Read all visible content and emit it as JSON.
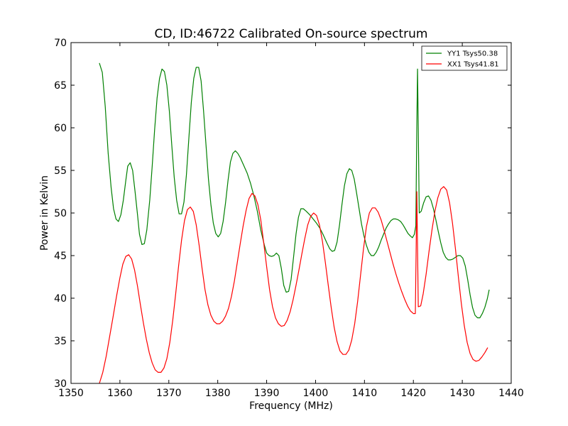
{
  "chart_data": {
    "type": "line",
    "title": "CD, ID:46722 Calibrated On-source spectrum",
    "xlabel": "Frequency (MHz)",
    "ylabel": "Power in Kelvin",
    "xlim": [
      1350,
      1440
    ],
    "ylim": [
      30,
      70
    ],
    "xticks": [
      1350,
      1360,
      1370,
      1380,
      1390,
      1400,
      1410,
      1420,
      1430,
      1440
    ],
    "yticks": [
      30,
      35,
      40,
      45,
      50,
      55,
      60,
      65,
      70
    ],
    "grid": false,
    "legend_position": "top-right",
    "series": [
      {
        "name": "YY1 Tsys50.38",
        "color": "#008000",
        "points": [
          [
            1355.8,
            67.6
          ],
          [
            1356.4,
            66.5
          ],
          [
            1357.0,
            62.5
          ],
          [
            1357.6,
            57.0
          ],
          [
            1358.2,
            53.0
          ],
          [
            1358.7,
            50.5
          ],
          [
            1359.2,
            49.3
          ],
          [
            1359.7,
            49.0
          ],
          [
            1360.2,
            49.8
          ],
          [
            1360.7,
            51.5
          ],
          [
            1361.2,
            53.8
          ],
          [
            1361.6,
            55.5
          ],
          [
            1362.1,
            55.9
          ],
          [
            1362.6,
            55.0
          ],
          [
            1363.1,
            52.5
          ],
          [
            1363.6,
            49.8
          ],
          [
            1364.0,
            47.5
          ],
          [
            1364.5,
            46.3
          ],
          [
            1365.0,
            46.4
          ],
          [
            1365.5,
            48.0
          ],
          [
            1366.1,
            51.5
          ],
          [
            1366.6,
            55.5
          ],
          [
            1367.1,
            59.8
          ],
          [
            1367.6,
            63.5
          ],
          [
            1368.1,
            65.8
          ],
          [
            1368.6,
            66.9
          ],
          [
            1369.1,
            66.6
          ],
          [
            1369.6,
            65.0
          ],
          [
            1370.1,
            62.0
          ],
          [
            1370.6,
            58.0
          ],
          [
            1371.1,
            54.2
          ],
          [
            1371.6,
            51.5
          ],
          [
            1372.1,
            49.9
          ],
          [
            1372.6,
            49.9
          ],
          [
            1373.1,
            51.3
          ],
          [
            1373.6,
            54.5
          ],
          [
            1374.1,
            58.8
          ],
          [
            1374.6,
            63.0
          ],
          [
            1375.1,
            65.8
          ],
          [
            1375.6,
            67.1
          ],
          [
            1376.1,
            67.1
          ],
          [
            1376.6,
            65.5
          ],
          [
            1377.1,
            62.0
          ],
          [
            1377.6,
            58.0
          ],
          [
            1378.1,
            54.0
          ],
          [
            1378.6,
            51.0
          ],
          [
            1379.1,
            48.8
          ],
          [
            1379.6,
            47.6
          ],
          [
            1380.1,
            47.2
          ],
          [
            1380.6,
            47.6
          ],
          [
            1381.1,
            49.0
          ],
          [
            1381.6,
            51.2
          ],
          [
            1382.1,
            53.8
          ],
          [
            1382.6,
            56.0
          ],
          [
            1383.1,
            57.0
          ],
          [
            1383.6,
            57.3
          ],
          [
            1384.1,
            57.0
          ],
          [
            1384.6,
            56.5
          ],
          [
            1385.3,
            55.6
          ],
          [
            1386.0,
            54.7
          ],
          [
            1386.7,
            53.5
          ],
          [
            1387.4,
            52.0
          ],
          [
            1388.1,
            50.2
          ],
          [
            1388.8,
            48.0
          ],
          [
            1389.5,
            46.3
          ],
          [
            1390.0,
            45.3
          ],
          [
            1390.5,
            45.0
          ],
          [
            1391.0,
            44.9
          ],
          [
            1391.5,
            45.0
          ],
          [
            1392.0,
            45.3
          ],
          [
            1392.5,
            45.0
          ],
          [
            1393.0,
            43.5
          ],
          [
            1393.5,
            41.5
          ],
          [
            1394.0,
            40.7
          ],
          [
            1394.5,
            40.8
          ],
          [
            1395.0,
            42.2
          ],
          [
            1395.5,
            44.8
          ],
          [
            1396.0,
            47.5
          ],
          [
            1396.5,
            49.5
          ],
          [
            1397.0,
            50.5
          ],
          [
            1397.5,
            50.5
          ],
          [
            1398.1,
            50.2
          ],
          [
            1398.8,
            49.8
          ],
          [
            1399.5,
            49.3
          ],
          [
            1400.2,
            48.8
          ],
          [
            1400.9,
            48.2
          ],
          [
            1401.6,
            47.4
          ],
          [
            1402.3,
            46.5
          ],
          [
            1402.9,
            45.8
          ],
          [
            1403.4,
            45.5
          ],
          [
            1403.9,
            45.6
          ],
          [
            1404.4,
            46.6
          ],
          [
            1404.9,
            48.6
          ],
          [
            1405.4,
            51.0
          ],
          [
            1405.9,
            53.2
          ],
          [
            1406.4,
            54.6
          ],
          [
            1406.9,
            55.2
          ],
          [
            1407.4,
            55.0
          ],
          [
            1407.9,
            54.0
          ],
          [
            1408.4,
            52.3
          ],
          [
            1408.9,
            50.5
          ],
          [
            1409.4,
            48.7
          ],
          [
            1409.9,
            47.3
          ],
          [
            1410.4,
            46.2
          ],
          [
            1410.9,
            45.4
          ],
          [
            1411.4,
            45.0
          ],
          [
            1411.9,
            45.0
          ],
          [
            1412.4,
            45.4
          ],
          [
            1412.9,
            46.0
          ],
          [
            1413.4,
            46.8
          ],
          [
            1413.9,
            47.5
          ],
          [
            1414.4,
            48.2
          ],
          [
            1414.9,
            48.7
          ],
          [
            1415.4,
            49.1
          ],
          [
            1415.9,
            49.3
          ],
          [
            1416.4,
            49.3
          ],
          [
            1416.9,
            49.2
          ],
          [
            1417.4,
            49.0
          ],
          [
            1417.9,
            48.6
          ],
          [
            1418.4,
            48.1
          ],
          [
            1418.9,
            47.6
          ],
          [
            1419.4,
            47.3
          ],
          [
            1419.8,
            47.1
          ],
          [
            1420.2,
            47.5
          ],
          [
            1420.5,
            48.5
          ],
          [
            1420.7,
            60.0
          ],
          [
            1420.85,
            66.9
          ],
          [
            1421.0,
            60.0
          ],
          [
            1421.2,
            50.0
          ],
          [
            1421.6,
            50.2
          ],
          [
            1422.1,
            51.2
          ],
          [
            1422.6,
            51.9
          ],
          [
            1423.1,
            52.0
          ],
          [
            1423.6,
            51.5
          ],
          [
            1424.1,
            50.5
          ],
          [
            1424.6,
            49.2
          ],
          [
            1425.1,
            47.8
          ],
          [
            1425.6,
            46.5
          ],
          [
            1426.1,
            45.4
          ],
          [
            1426.6,
            44.8
          ],
          [
            1427.1,
            44.5
          ],
          [
            1427.6,
            44.5
          ],
          [
            1428.1,
            44.6
          ],
          [
            1428.6,
            44.8
          ],
          [
            1429.1,
            45.0
          ],
          [
            1429.6,
            45.0
          ],
          [
            1430.1,
            44.7
          ],
          [
            1430.6,
            43.8
          ],
          [
            1431.1,
            42.2
          ],
          [
            1431.6,
            40.4
          ],
          [
            1432.1,
            38.9
          ],
          [
            1432.6,
            38.0
          ],
          [
            1433.1,
            37.7
          ],
          [
            1433.6,
            37.7
          ],
          [
            1434.1,
            38.2
          ],
          [
            1434.6,
            38.9
          ],
          [
            1435.1,
            39.9
          ],
          [
            1435.5,
            41.0
          ]
        ]
      },
      {
        "name": "XX1 Tsys41.81",
        "color": "#ff0000",
        "points": [
          [
            1355.8,
            30.0
          ],
          [
            1356.5,
            31.3
          ],
          [
            1357.2,
            33.2
          ],
          [
            1357.9,
            35.5
          ],
          [
            1358.6,
            37.8
          ],
          [
            1359.3,
            40.2
          ],
          [
            1360.0,
            42.4
          ],
          [
            1360.6,
            44.0
          ],
          [
            1361.2,
            44.9
          ],
          [
            1361.8,
            45.1
          ],
          [
            1362.4,
            44.6
          ],
          [
            1363.0,
            43.3
          ],
          [
            1363.6,
            41.4
          ],
          [
            1364.2,
            39.2
          ],
          [
            1364.8,
            37.1
          ],
          [
            1365.4,
            35.2
          ],
          [
            1366.0,
            33.6
          ],
          [
            1366.6,
            32.4
          ],
          [
            1367.2,
            31.6
          ],
          [
            1367.8,
            31.3
          ],
          [
            1368.4,
            31.3
          ],
          [
            1369.0,
            31.8
          ],
          [
            1369.6,
            32.9
          ],
          [
            1370.2,
            34.8
          ],
          [
            1370.8,
            37.4
          ],
          [
            1371.4,
            40.5
          ],
          [
            1372.0,
            43.8
          ],
          [
            1372.6,
            46.8
          ],
          [
            1373.2,
            49.1
          ],
          [
            1373.8,
            50.4
          ],
          [
            1374.4,
            50.7
          ],
          [
            1375.0,
            50.2
          ],
          [
            1375.6,
            48.6
          ],
          [
            1376.2,
            46.2
          ],
          [
            1376.8,
            43.5
          ],
          [
            1377.4,
            41.0
          ],
          [
            1378.0,
            39.2
          ],
          [
            1378.6,
            38.0
          ],
          [
            1379.2,
            37.3
          ],
          [
            1379.8,
            37.0
          ],
          [
            1380.4,
            37.0
          ],
          [
            1381.0,
            37.3
          ],
          [
            1381.6,
            37.9
          ],
          [
            1382.2,
            38.8
          ],
          [
            1382.8,
            40.2
          ],
          [
            1383.4,
            42.0
          ],
          [
            1384.0,
            44.2
          ],
          [
            1384.6,
            46.4
          ],
          [
            1385.2,
            48.5
          ],
          [
            1385.8,
            50.3
          ],
          [
            1386.4,
            51.7
          ],
          [
            1387.0,
            52.3
          ],
          [
            1387.6,
            52.0
          ],
          [
            1388.2,
            51.0
          ],
          [
            1388.8,
            49.2
          ],
          [
            1389.4,
            46.5
          ],
          [
            1390.0,
            43.7
          ],
          [
            1390.6,
            41.0
          ],
          [
            1391.2,
            39.0
          ],
          [
            1391.8,
            37.7
          ],
          [
            1392.4,
            37.0
          ],
          [
            1393.0,
            36.7
          ],
          [
            1393.6,
            36.8
          ],
          [
            1394.2,
            37.4
          ],
          [
            1394.8,
            38.4
          ],
          [
            1395.4,
            39.8
          ],
          [
            1396.0,
            41.5
          ],
          [
            1396.6,
            43.3
          ],
          [
            1397.2,
            45.2
          ],
          [
            1397.8,
            47.0
          ],
          [
            1398.4,
            48.6
          ],
          [
            1399.0,
            49.6
          ],
          [
            1399.6,
            50.0
          ],
          [
            1400.2,
            49.7
          ],
          [
            1400.8,
            48.6
          ],
          [
            1401.4,
            46.7
          ],
          [
            1402.0,
            44.2
          ],
          [
            1402.6,
            41.5
          ],
          [
            1403.2,
            38.9
          ],
          [
            1403.8,
            36.6
          ],
          [
            1404.4,
            34.9
          ],
          [
            1405.0,
            33.8
          ],
          [
            1405.6,
            33.4
          ],
          [
            1406.2,
            33.4
          ],
          [
            1406.8,
            33.9
          ],
          [
            1407.4,
            35.1
          ],
          [
            1408.0,
            37.0
          ],
          [
            1408.6,
            39.6
          ],
          [
            1409.2,
            42.7
          ],
          [
            1409.8,
            45.8
          ],
          [
            1410.4,
            48.4
          ],
          [
            1411.0,
            50.0
          ],
          [
            1411.6,
            50.6
          ],
          [
            1412.2,
            50.6
          ],
          [
            1412.8,
            50.1
          ],
          [
            1413.4,
            49.2
          ],
          [
            1414.0,
            48.0
          ],
          [
            1414.6,
            46.7
          ],
          [
            1415.2,
            45.4
          ],
          [
            1415.8,
            44.1
          ],
          [
            1416.4,
            42.9
          ],
          [
            1417.0,
            41.8
          ],
          [
            1417.6,
            40.8
          ],
          [
            1418.2,
            39.9
          ],
          [
            1418.8,
            39.1
          ],
          [
            1419.4,
            38.5
          ],
          [
            1420.0,
            38.2
          ],
          [
            1420.4,
            38.2
          ],
          [
            1420.55,
            45.0
          ],
          [
            1420.7,
            52.5
          ],
          [
            1420.85,
            46.0
          ],
          [
            1421.0,
            39.0
          ],
          [
            1421.5,
            39.1
          ],
          [
            1422.0,
            40.5
          ],
          [
            1422.6,
            42.8
          ],
          [
            1423.2,
            45.5
          ],
          [
            1423.8,
            48.0
          ],
          [
            1424.4,
            50.2
          ],
          [
            1425.0,
            51.8
          ],
          [
            1425.6,
            52.8
          ],
          [
            1426.2,
            53.1
          ],
          [
            1426.8,
            52.7
          ],
          [
            1427.4,
            51.2
          ],
          [
            1428.0,
            48.8
          ],
          [
            1428.6,
            45.8
          ],
          [
            1429.2,
            42.5
          ],
          [
            1429.8,
            39.4
          ],
          [
            1430.4,
            36.8
          ],
          [
            1431.0,
            34.8
          ],
          [
            1431.6,
            33.5
          ],
          [
            1432.2,
            32.8
          ],
          [
            1432.8,
            32.6
          ],
          [
            1433.4,
            32.7
          ],
          [
            1434.0,
            33.1
          ],
          [
            1434.6,
            33.6
          ],
          [
            1435.2,
            34.2
          ]
        ]
      }
    ]
  }
}
